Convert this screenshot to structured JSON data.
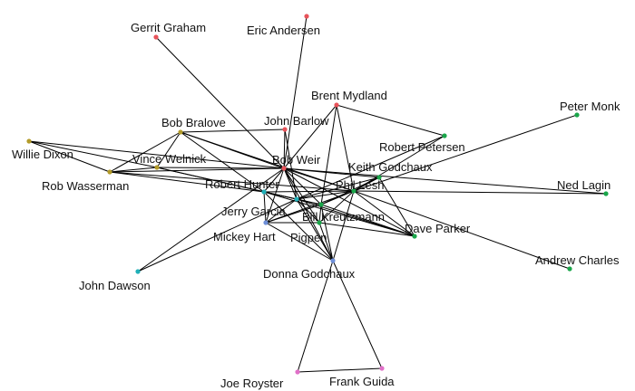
{
  "chart_data": {
    "type": "network",
    "colors": {
      "red": "#e8535a",
      "green": "#1aa64a",
      "olive": "#b39b2a",
      "teal": "#20b0b8",
      "blue": "#6e8fd8",
      "pink": "#e070c8"
    },
    "nodes": [
      {
        "id": "gerrit",
        "label": "Gerrit Graham",
        "color": "red"
      },
      {
        "id": "eric",
        "label": "Eric Andersen",
        "color": "red"
      },
      {
        "id": "brent",
        "label": "Brent Mydland",
        "color": "red"
      },
      {
        "id": "barlow",
        "label": "John Barlow",
        "color": "red"
      },
      {
        "id": "weir",
        "label": "Bob Weir",
        "color": "red"
      },
      {
        "id": "bralove",
        "label": "Bob Bralove",
        "color": "olive"
      },
      {
        "id": "dixon",
        "label": "Willie Dixon",
        "color": "olive"
      },
      {
        "id": "welnick",
        "label": "Vince Welnick",
        "color": "olive"
      },
      {
        "id": "wasserman",
        "label": "Rob Wasserman",
        "color": "olive"
      },
      {
        "id": "petersen",
        "label": "Robert Petersen",
        "color": "green"
      },
      {
        "id": "monk",
        "label": "Peter Monk",
        "color": "green"
      },
      {
        "id": "keith",
        "label": "Keith Godchaux",
        "color": "green"
      },
      {
        "id": "lesh",
        "label": "Phil Lesh",
        "color": "green"
      },
      {
        "id": "lagin",
        "label": "Ned Lagin",
        "color": "green"
      },
      {
        "id": "hunter",
        "label": "Robert Hunter",
        "color": "teal"
      },
      {
        "id": "kreutzmann",
        "label": "Bill Kreutzmann",
        "color": "green"
      },
      {
        "id": "garcia",
        "label": "Jerry Garcia",
        "color": "teal"
      },
      {
        "id": "parker",
        "label": "Dave Parker",
        "color": "green"
      },
      {
        "id": "hart",
        "label": "Mickey Hart",
        "color": "blue"
      },
      {
        "id": "pigpen",
        "label": "Pigpen",
        "color": "green"
      },
      {
        "id": "charles",
        "label": "Andrew Charles",
        "color": "green"
      },
      {
        "id": "donna",
        "label": "Donna Godchaux",
        "color": "blue"
      },
      {
        "id": "dawson",
        "label": "John Dawson",
        "color": "teal"
      },
      {
        "id": "royster",
        "label": "Joe Royster",
        "color": "pink"
      },
      {
        "id": "guida",
        "label": "Frank Guida",
        "color": "pink"
      }
    ],
    "edges": [
      [
        "gerrit",
        "weir"
      ],
      [
        "eric",
        "weir"
      ],
      [
        "brent",
        "weir"
      ],
      [
        "brent",
        "petersen"
      ],
      [
        "brent",
        "lesh"
      ],
      [
        "brent",
        "kreutzmann"
      ],
      [
        "barlow",
        "weir"
      ],
      [
        "barlow",
        "bralove"
      ],
      [
        "barlow",
        "garcia"
      ],
      [
        "weir",
        "welnick"
      ],
      [
        "weir",
        "wasserman"
      ],
      [
        "weir",
        "hunter"
      ],
      [
        "weir",
        "garcia"
      ],
      [
        "weir",
        "lesh"
      ],
      [
        "weir",
        "kreutzmann"
      ],
      [
        "weir",
        "hart"
      ],
      [
        "weir",
        "pigpen"
      ],
      [
        "weir",
        "keith"
      ],
      [
        "weir",
        "donna"
      ],
      [
        "weir",
        "dawson"
      ],
      [
        "weir",
        "parker"
      ],
      [
        "weir",
        "bralove"
      ],
      [
        "bralove",
        "welnick"
      ],
      [
        "bralove",
        "wasserman"
      ],
      [
        "bralove",
        "hunter"
      ],
      [
        "bralove",
        "lesh"
      ],
      [
        "dixon",
        "wasserman"
      ],
      [
        "dixon",
        "welnick"
      ],
      [
        "dixon",
        "weir"
      ],
      [
        "welnick",
        "wasserman"
      ],
      [
        "welnick",
        "hunter"
      ],
      [
        "welnick",
        "garcia"
      ],
      [
        "wasserman",
        "lesh"
      ],
      [
        "wasserman",
        "hunter"
      ],
      [
        "petersen",
        "lesh"
      ],
      [
        "petersen",
        "garcia"
      ],
      [
        "monk",
        "lesh"
      ],
      [
        "lagin",
        "lesh"
      ],
      [
        "keith",
        "lesh"
      ],
      [
        "keith",
        "garcia"
      ],
      [
        "keith",
        "kreutzmann"
      ],
      [
        "lesh",
        "hunter"
      ],
      [
        "lesh",
        "garcia"
      ],
      [
        "lesh",
        "kreutzmann"
      ],
      [
        "lesh",
        "hart"
      ],
      [
        "lesh",
        "pigpen"
      ],
      [
        "lesh",
        "donna"
      ],
      [
        "lesh",
        "parker"
      ],
      [
        "lesh",
        "charles"
      ],
      [
        "hunter",
        "garcia"
      ],
      [
        "hunter",
        "kreutzmann"
      ],
      [
        "hunter",
        "hart"
      ],
      [
        "hunter",
        "parker"
      ],
      [
        "hunter",
        "donna"
      ],
      [
        "kreutzmann",
        "garcia"
      ],
      [
        "kreutzmann",
        "hart"
      ],
      [
        "kreutzmann",
        "pigpen"
      ],
      [
        "kreutzmann",
        "donna"
      ],
      [
        "kreutzmann",
        "parker"
      ],
      [
        "garcia",
        "hart"
      ],
      [
        "garcia",
        "pigpen"
      ],
      [
        "garcia",
        "donna"
      ],
      [
        "garcia",
        "parker"
      ],
      [
        "garcia",
        "dawson"
      ],
      [
        "hart",
        "pigpen"
      ],
      [
        "hart",
        "donna"
      ],
      [
        "pigpen",
        "donna"
      ],
      [
        "pigpen",
        "parker"
      ],
      [
        "donna",
        "royster"
      ],
      [
        "donna",
        "guida"
      ],
      [
        "royster",
        "guida"
      ],
      [
        "keith",
        "parker"
      ],
      [
        "weir",
        "lagin"
      ]
    ]
  }
}
